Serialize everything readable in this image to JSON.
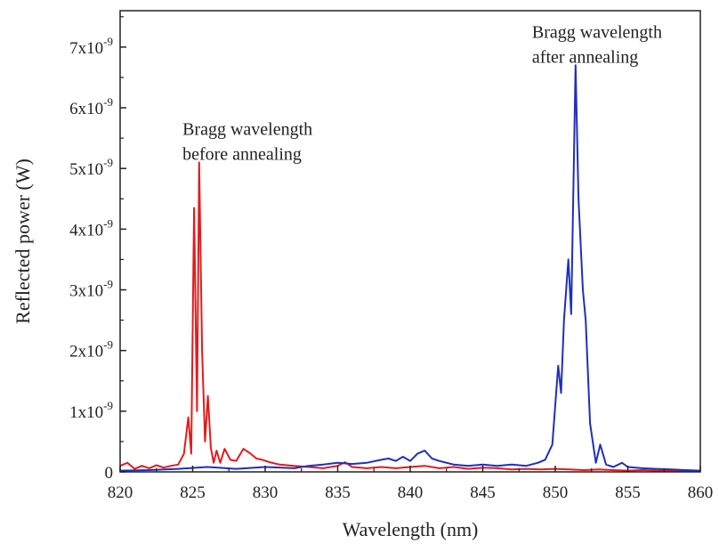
{
  "chart_data": {
    "type": "line",
    "xlabel": "Wavelength (nm)",
    "ylabel": "Reflected power (W)",
    "xlim": [
      820,
      860
    ],
    "ylim": [
      0,
      7.6e-09
    ],
    "grid": false,
    "x_ticks": [
      820,
      825,
      830,
      835,
      840,
      845,
      850,
      855,
      860
    ],
    "x_tick_labels": [
      "820",
      "825",
      "830",
      "835",
      "840",
      "845",
      "850",
      "855",
      "860"
    ],
    "y_ticks": [
      0,
      1e-09,
      2e-09,
      3e-09,
      4e-09,
      5e-09,
      6e-09,
      7e-09
    ],
    "y_tick_labels": [
      {
        "base": "0",
        "exp": ""
      },
      {
        "base": "1x10",
        "exp": "-9"
      },
      {
        "base": "2x10",
        "exp": "-9"
      },
      {
        "base": "3x10",
        "exp": "-9"
      },
      {
        "base": "4x10",
        "exp": "-9"
      },
      {
        "base": "5x10",
        "exp": "-9"
      },
      {
        "base": "6x10",
        "exp": "-9"
      },
      {
        "base": "7x10",
        "exp": "-9"
      }
    ],
    "annotations": [
      {
        "lines": [
          "Bragg wavelength",
          "before annealing"
        ],
        "x": 824.3,
        "y": 5.55e-09
      },
      {
        "lines": [
          "Bragg wavelength",
          "after annealing"
        ],
        "x": 848.4,
        "y": 7.15e-09
      }
    ],
    "series": [
      {
        "color": "#e41a1c",
        "x": [
          820.0,
          820.5,
          821.0,
          821.5,
          822.0,
          822.5,
          823.0,
          823.5,
          824.0,
          824.4,
          824.7,
          824.9,
          825.1,
          825.3,
          825.45,
          825.65,
          825.85,
          826.05,
          826.25,
          826.45,
          826.65,
          826.9,
          827.2,
          827.6,
          828.0,
          828.5,
          829.0,
          829.4,
          829.8,
          830.3,
          831.0,
          832.0,
          833.0,
          834.0,
          835.0,
          835.5,
          836.0,
          837.0,
          838.0,
          839.0,
          840.0,
          841.0,
          842.0,
          843.0,
          844.0,
          845.0,
          846.0,
          847.0,
          848.0,
          849.0,
          850.0,
          851.0,
          852.0,
          853.0,
          854.0,
          855.0,
          856.0,
          857.0,
          858.0,
          859.0,
          860.0
        ],
        "y": [
          1e-10,
          1.5e-10,
          5e-11,
          1e-10,
          6e-11,
          1.1e-10,
          7e-11,
          1e-10,
          1.2e-10,
          3e-10,
          9e-10,
          3e-10,
          4.35e-09,
          1e-09,
          5.1e-09,
          2e-09,
          5e-10,
          1.25e-09,
          4e-10,
          1.5e-10,
          3.5e-10,
          1.5e-10,
          3.8e-10,
          2e-10,
          1.8e-10,
          3.8e-10,
          3e-10,
          2.2e-10,
          2e-10,
          1.6e-10,
          1.2e-10,
          1e-10,
          8e-11,
          6e-11,
          1e-10,
          1.6e-10,
          8e-11,
          6e-11,
          8e-11,
          6e-11,
          8e-11,
          1e-10,
          6e-11,
          8e-11,
          5e-11,
          7e-11,
          6e-11,
          4e-11,
          5e-11,
          4e-11,
          5e-11,
          4e-11,
          3e-11,
          4e-11,
          3e-11,
          2e-11,
          3e-11,
          2e-11,
          2e-11,
          2e-11,
          2e-11
        ]
      },
      {
        "color": "#1f2fbf",
        "x": [
          820.0,
          822.0,
          824.0,
          826.0,
          828.0,
          830.0,
          832.0,
          833.0,
          834.0,
          835.0,
          836.0,
          837.0,
          838.0,
          838.5,
          839.0,
          839.5,
          840.0,
          840.5,
          841.0,
          841.5,
          842.0,
          843.0,
          844.0,
          845.0,
          846.0,
          847.0,
          848.0,
          848.8,
          849.3,
          849.8,
          850.2,
          850.4,
          850.6,
          850.9,
          851.1,
          851.4,
          851.6,
          851.9,
          852.1,
          852.4,
          852.8,
          853.1,
          853.5,
          854.0,
          854.6,
          855.0,
          856.0,
          857.0,
          858.0,
          859.0,
          860.0
        ],
        "y": [
          2e-11,
          3e-11,
          5e-11,
          8e-11,
          5e-11,
          8e-11,
          6e-11,
          1e-10,
          1.2e-10,
          1.5e-10,
          1.3e-10,
          1.5e-10,
          2e-10,
          2.2e-10,
          1.8e-10,
          2.5e-10,
          1.8e-10,
          3e-10,
          3.5e-10,
          2.2e-10,
          1.8e-10,
          1.2e-10,
          1e-10,
          1.2e-10,
          1e-10,
          1.2e-10,
          1e-10,
          1.5e-10,
          2e-10,
          4.5e-10,
          1.75e-09,
          1.3e-09,
          2.5e-09,
          3.5e-09,
          2.6e-09,
          6.7e-09,
          4.5e-09,
          3e-09,
          2.5e-09,
          8e-10,
          1.5e-10,
          4.5e-10,
          1.2e-10,
          8e-11,
          1.5e-10,
          8e-11,
          6e-11,
          5e-11,
          4e-11,
          3e-11,
          2e-11
        ]
      }
    ]
  }
}
